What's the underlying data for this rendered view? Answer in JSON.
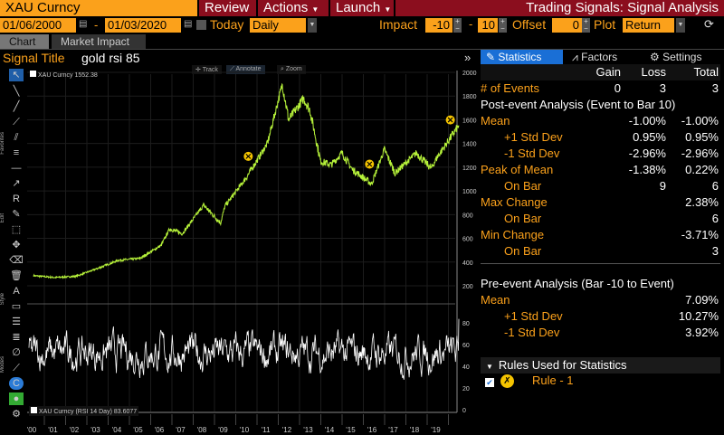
{
  "header": {
    "ticker": "XAU Curncy",
    "review": "Review",
    "actions": "Actions",
    "launch": "Launch",
    "title": "Trading Signals: Signal Analysis"
  },
  "controls": {
    "start_date": "01/06/2000",
    "end_date": "01/03/2020",
    "today_label": "Today",
    "today_checked": false,
    "frequency": "Daily",
    "impact_label": "Impact",
    "impact_from": "-10",
    "impact_to": "10",
    "offset_label": "Offset",
    "offset": "0",
    "plot_label": "Plot",
    "plot": "Return"
  },
  "tabs": [
    {
      "label": "Chart",
      "active": true
    },
    {
      "label": "Market Impact",
      "active": false
    }
  ],
  "signal": {
    "title_label": "Signal Title",
    "title": "gold rsi 85"
  },
  "chart_toolbar": {
    "track": "Track",
    "annotate": "Annotate",
    "zoom": "Zoom"
  },
  "side_labels": {
    "favorites": "Favorites",
    "edit": "Edit",
    "style": "Style",
    "modes": "Modes"
  },
  "legend": {
    "price": "XAU Curncy 1552.38",
    "rsi": "XAU Curncy (RSI 14 Day) 83.6077"
  },
  "right_tabs": [
    {
      "label": "Statistics",
      "active": true
    },
    {
      "label": "Factors"
    },
    {
      "label": "Settings"
    }
  ],
  "stats": {
    "headers": [
      "Gain",
      "Loss",
      "Total"
    ],
    "events": {
      "label": "# of Events",
      "gain": "0",
      "loss": "3",
      "total": "3"
    },
    "post_title": "Post-event Analysis (Event to Bar 10)",
    "post": [
      {
        "label": "Mean",
        "loss": "-1.00%",
        "total": "-1.00%",
        "indent": false
      },
      {
        "label": "+1 Std Dev",
        "loss": "0.95%",
        "total": "0.95%",
        "indent": true
      },
      {
        "label": "-1 Std Dev",
        "loss": "-2.96%",
        "total": "-2.96%",
        "indent": true
      },
      {
        "label": "Peak of Mean",
        "loss": "-1.38%",
        "total": "0.22%",
        "indent": false
      },
      {
        "label": "On Bar",
        "loss": "9",
        "total": "6",
        "indent": true
      },
      {
        "label": "Max Change",
        "loss": "",
        "total": "2.38%",
        "indent": false
      },
      {
        "label": "On Bar",
        "loss": "",
        "total": "6",
        "indent": true
      },
      {
        "label": "Min Change",
        "loss": "",
        "total": "-3.71%",
        "indent": false
      },
      {
        "label": "On Bar",
        "loss": "",
        "total": "3",
        "indent": true
      }
    ],
    "pre_title": "Pre-event Analysis (Bar -10 to Event)",
    "pre": [
      {
        "label": "Mean",
        "total": "7.09%",
        "indent": false
      },
      {
        "label": "+1 Std Dev",
        "total": "10.27%",
        "indent": true
      },
      {
        "label": "-1 Std Dev",
        "total": "3.92%",
        "indent": true
      }
    ]
  },
  "rules": {
    "title": "Rules Used for Statistics",
    "items": [
      {
        "label": "Rule - 1",
        "checked": true
      }
    ]
  },
  "chart_data": {
    "type": "line",
    "price": {
      "series_name": "XAU Curncy",
      "ylim": [
        200,
        2000
      ],
      "yticks": [
        200,
        400,
        600,
        800,
        1000,
        1200,
        1400,
        1600,
        1800,
        2000
      ],
      "points": [
        [
          2000.0,
          285
        ],
        [
          2001.0,
          270
        ],
        [
          2002.0,
          280
        ],
        [
          2003.0,
          345
        ],
        [
          2004.0,
          415
        ],
        [
          2005.0,
          430
        ],
        [
          2006.0,
          540
        ],
        [
          2006.4,
          680
        ],
        [
          2007.0,
          640
        ],
        [
          2008.0,
          880
        ],
        [
          2008.8,
          730
        ],
        [
          2009.0,
          870
        ],
        [
          2010.0,
          1110
        ],
        [
          2011.0,
          1400
        ],
        [
          2011.7,
          1900
        ],
        [
          2012.0,
          1600
        ],
        [
          2012.7,
          1780
        ],
        [
          2013.0,
          1680
        ],
        [
          2013.5,
          1250
        ],
        [
          2014.0,
          1220
        ],
        [
          2014.5,
          1320
        ],
        [
          2015.0,
          1180
        ],
        [
          2015.9,
          1060
        ],
        [
          2016.5,
          1350
        ],
        [
          2017.0,
          1150
        ],
        [
          2018.0,
          1320
        ],
        [
          2018.7,
          1190
        ],
        [
          2019.0,
          1290
        ],
        [
          2019.5,
          1420
        ],
        [
          2020.0,
          1552
        ]
      ],
      "signals": [
        2010.1,
        2015.8,
        2019.6
      ]
    },
    "rsi": {
      "series_name": "XAU Curncy (RSI 14 Day)",
      "ylim": [
        0,
        90
      ],
      "yticks": [
        0,
        20,
        40,
        60,
        80
      ],
      "last": 83.6077
    },
    "xticks": [
      "'00",
      "'01",
      "'02",
      "'03",
      "'04",
      "'05",
      "'06",
      "'07",
      "'08",
      "'09",
      "'10",
      "'11",
      "'12",
      "'13",
      "'14",
      "'15",
      "'16",
      "'17",
      "'18",
      "'19"
    ],
    "line_color": "#b6f23a"
  }
}
